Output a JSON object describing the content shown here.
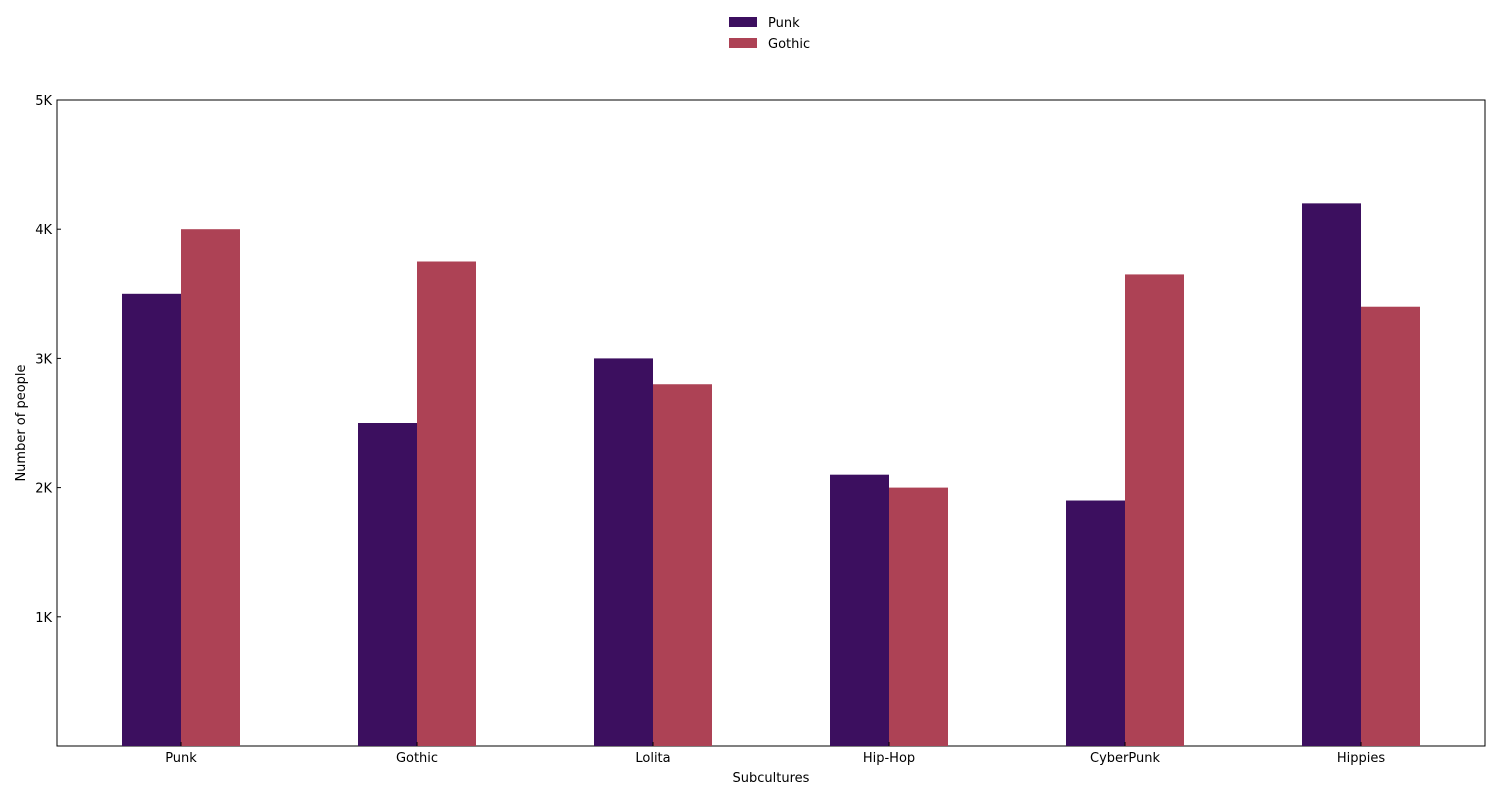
{
  "chart_data": {
    "type": "bar",
    "categories": [
      "Punk",
      "Gothic",
      "Lolita",
      "Hip-Hop",
      "CyberPunk",
      "Hippies"
    ],
    "series": [
      {
        "name": "Punk",
        "values": [
          3500,
          2500,
          3000,
          2100,
          1900,
          4200
        ],
        "color": "#3c0f5f"
      },
      {
        "name": "Gothic",
        "values": [
          4000,
          3750,
          2800,
          2000,
          3650,
          3400
        ],
        "color": "#ad4255"
      }
    ],
    "xlabel": "Subcultures",
    "ylabel": "Number of people",
    "ylim": [
      0,
      5000
    ],
    "yticks": [
      1000,
      2000,
      3000,
      4000,
      5000
    ],
    "ytick_labels": [
      "1K",
      "2K",
      "3K",
      "4K",
      "5K"
    ],
    "grid": false,
    "legend_position": "top-center"
  }
}
